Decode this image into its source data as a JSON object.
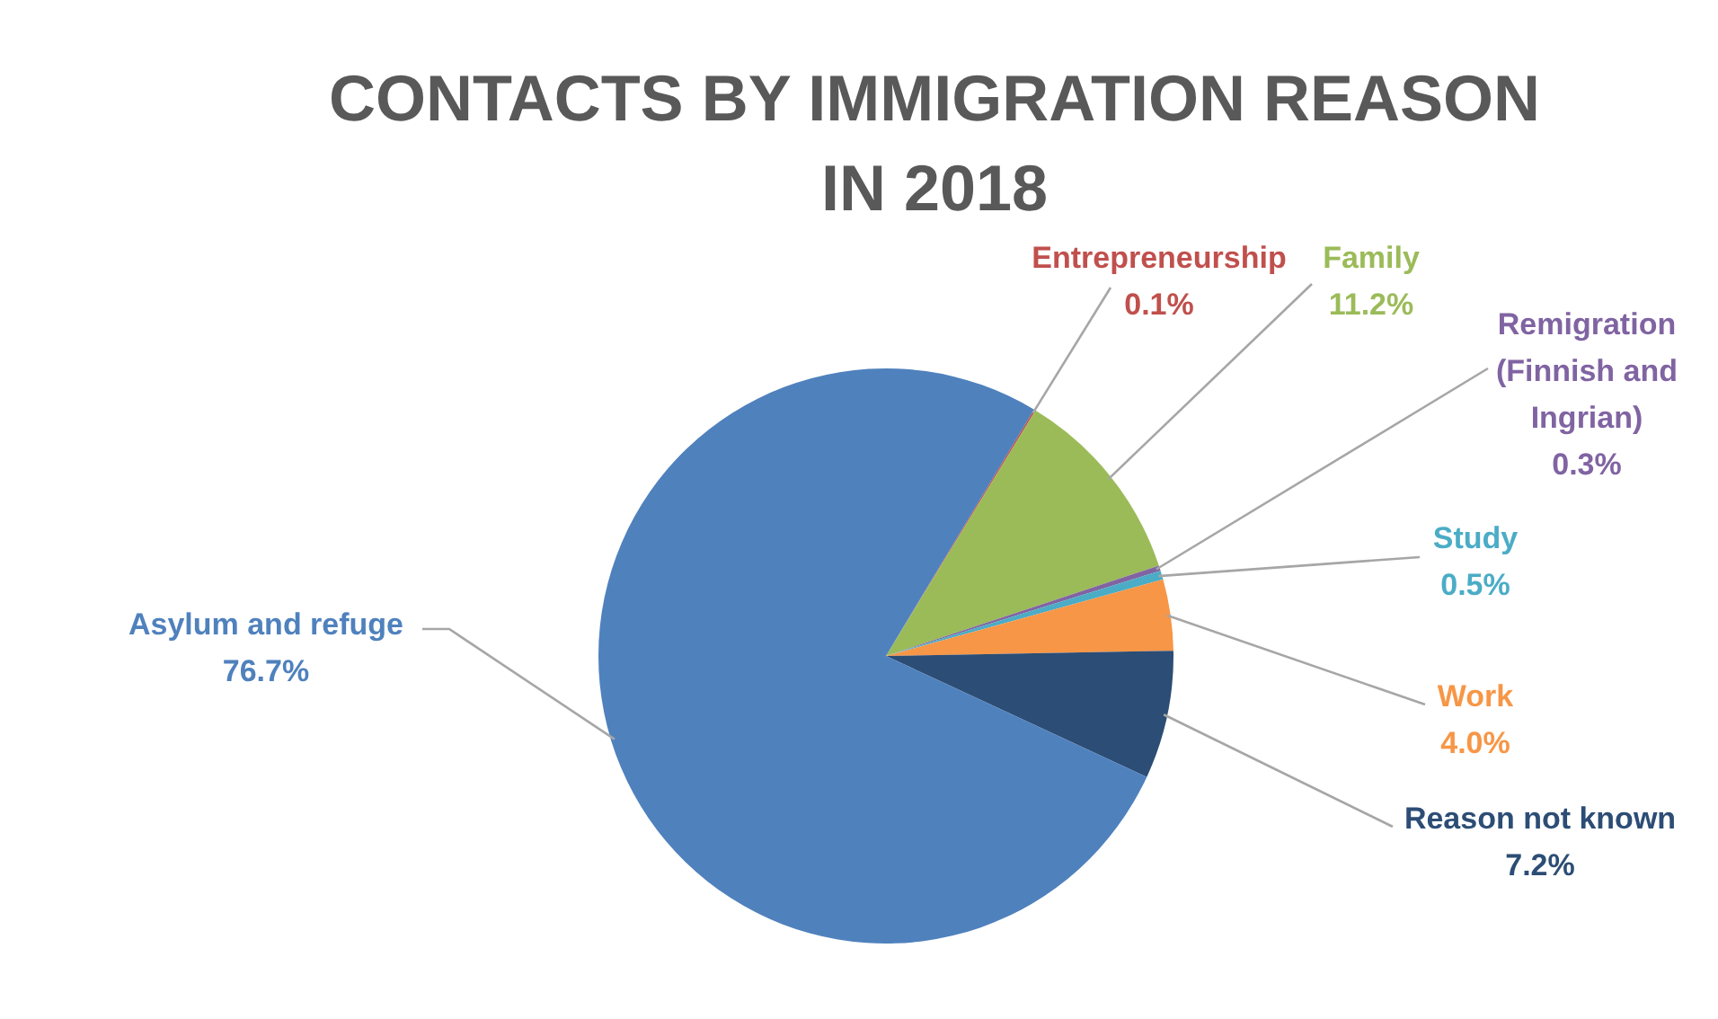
{
  "chart_data": {
    "type": "pie",
    "title": "CONTACTS BY IMMIGRATION REASON IN 2018",
    "categories": [
      "Entrepreneurship",
      "Family",
      "Remigration (Finnish and Ingrian)",
      "Study",
      "Work",
      "Reason not known",
      "Asylum and refuge"
    ],
    "values": [
      0.1,
      11.2,
      0.3,
      0.5,
      4.0,
      7.2,
      76.7
    ],
    "value_labels": [
      "0.1%",
      "11.2%",
      "0.3%",
      "0.5%",
      "4.0%",
      "7.2%",
      "76.7%"
    ],
    "colors": [
      "#c0504d",
      "#9bbb59",
      "#8064a2",
      "#4bacc6",
      "#f79646",
      "#2c4d75",
      "#4f81bd"
    ],
    "legend": false
  }
}
